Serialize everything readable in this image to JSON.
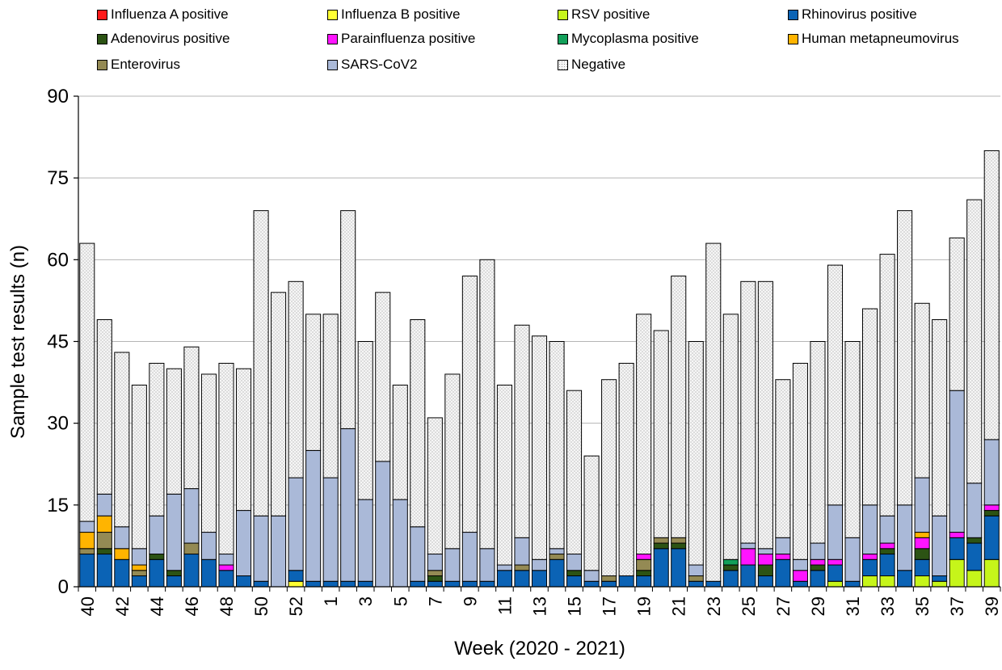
{
  "chart_data": {
    "type": "bar",
    "stacked": true,
    "title": "",
    "xlabel": "Week (2020 - 2021)",
    "ylabel": "Sample test results (n)",
    "ylim": [
      0,
      90
    ],
    "yticks": [
      0,
      15,
      30,
      45,
      60,
      75,
      90
    ],
    "grid": "horizontal",
    "legend_position": "top",
    "categories": [
      "40",
      "41",
      "42",
      "43",
      "44",
      "45",
      "46",
      "47",
      "48",
      "49",
      "50",
      "51",
      "52",
      "53",
      "1",
      "2",
      "3",
      "4",
      "5",
      "6",
      "7",
      "8",
      "9",
      "10",
      "11",
      "12",
      "13",
      "14",
      "15",
      "16",
      "17",
      "18",
      "19",
      "20",
      "21",
      "22",
      "23",
      "24",
      "25",
      "26",
      "27",
      "28",
      "29",
      "30",
      "31",
      "32",
      "33",
      "34",
      "35",
      "36",
      "37",
      "38",
      "39"
    ],
    "x_tick_labels": [
      "40",
      "",
      "42",
      "",
      "44",
      "",
      "46",
      "",
      "48",
      "",
      "50",
      "",
      "52",
      "",
      "1",
      "",
      "3",
      "",
      "5",
      "",
      "7",
      "",
      "9",
      "",
      "11",
      "",
      "13",
      "",
      "15",
      "",
      "17",
      "",
      "19",
      "",
      "21",
      "",
      "23",
      "",
      "25",
      "",
      "27",
      "",
      "29",
      "",
      "31",
      "",
      "33",
      "",
      "35",
      "",
      "37",
      "",
      "39"
    ],
    "series": [
      {
        "name": "RSV positive",
        "color": "#c6f51a",
        "pattern": "none",
        "values": [
          0,
          0,
          0,
          0,
          0,
          0,
          0,
          0,
          0,
          0,
          0,
          0,
          0,
          0,
          0,
          0,
          0,
          0,
          0,
          0,
          0,
          0,
          0,
          0,
          0,
          0,
          0,
          0,
          0,
          0,
          0,
          0,
          0,
          0,
          0,
          0,
          0,
          0,
          0,
          0,
          0,
          0,
          0,
          1,
          0,
          2,
          2,
          0,
          2,
          1,
          5,
          3,
          5
        ]
      },
      {
        "name": "Influenza B positive",
        "color": "#ffff33",
        "pattern": "none",
        "values": [
          0,
          0,
          0,
          0,
          0,
          0,
          0,
          0,
          0,
          0,
          0,
          0,
          1,
          0,
          0,
          0,
          0,
          0,
          0,
          0,
          0,
          0,
          0,
          0,
          0,
          0,
          0,
          0,
          0,
          0,
          0,
          0,
          0,
          0,
          0,
          0,
          0,
          0,
          0,
          0,
          0,
          0,
          0,
          0,
          0,
          0,
          0,
          0,
          0,
          0,
          0,
          0,
          0
        ]
      },
      {
        "name": "Rhinovirus positive",
        "color": "#0b63b5",
        "pattern": "none",
        "values": [
          6,
          6,
          5,
          2,
          5,
          2,
          6,
          5,
          3,
          2,
          1,
          0,
          2,
          1,
          1,
          1,
          1,
          0,
          0,
          1,
          1,
          1,
          1,
          1,
          3,
          3,
          3,
          5,
          2,
          1,
          1,
          2,
          2,
          7,
          7,
          1,
          1,
          3,
          4,
          2,
          5,
          1,
          3,
          3,
          1,
          3,
          4,
          3,
          3,
          1,
          4,
          5,
          8
        ]
      },
      {
        "name": "Adenovirus positive",
        "color": "#2c5314",
        "pattern": "none",
        "values": [
          0,
          1,
          0,
          0,
          1,
          1,
          0,
          0,
          0,
          0,
          0,
          0,
          0,
          0,
          0,
          0,
          0,
          0,
          0,
          0,
          1,
          0,
          0,
          0,
          0,
          0,
          0,
          0,
          1,
          0,
          0,
          0,
          1,
          1,
          1,
          0,
          0,
          1,
          0,
          2,
          0,
          0,
          1,
          0,
          0,
          0,
          1,
          0,
          2,
          0,
          0,
          1,
          1
        ]
      },
      {
        "name": "Enterovirus",
        "color": "#948a54",
        "pattern": "none",
        "values": [
          1,
          3,
          0,
          1,
          0,
          0,
          2,
          0,
          0,
          0,
          0,
          0,
          0,
          0,
          0,
          0,
          0,
          0,
          0,
          0,
          1,
          0,
          0,
          0,
          0,
          1,
          0,
          1,
          0,
          0,
          1,
          0,
          2,
          1,
          1,
          1,
          0,
          0,
          0,
          0,
          0,
          0,
          0,
          0,
          0,
          0,
          0,
          0,
          0,
          0,
          0,
          0,
          0
        ]
      },
      {
        "name": "Mycoplasma positive",
        "color": "#12a05a",
        "pattern": "none",
        "values": [
          0,
          0,
          0,
          0,
          0,
          0,
          0,
          0,
          0,
          0,
          0,
          0,
          0,
          0,
          0,
          0,
          0,
          0,
          0,
          0,
          0,
          0,
          0,
          0,
          0,
          0,
          0,
          0,
          0,
          0,
          0,
          0,
          0,
          0,
          0,
          0,
          0,
          1,
          0,
          0,
          0,
          0,
          0,
          0,
          0,
          0,
          0,
          0,
          0,
          0,
          0,
          0,
          0
        ]
      },
      {
        "name": "Parainfluenza positive",
        "color": "#ff14ff",
        "pattern": "none",
        "values": [
          0,
          0,
          0,
          0,
          0,
          0,
          0,
          0,
          1,
          0,
          0,
          0,
          0,
          0,
          0,
          0,
          0,
          0,
          0,
          0,
          0,
          0,
          0,
          0,
          0,
          0,
          0,
          0,
          0,
          0,
          0,
          0,
          1,
          0,
          0,
          0,
          0,
          0,
          3,
          2,
          1,
          2,
          1,
          1,
          0,
          1,
          1,
          0,
          2,
          0,
          1,
          0,
          1
        ]
      },
      {
        "name": "Human metapneumovirus",
        "color": "#ffb400",
        "pattern": "none",
        "values": [
          3,
          3,
          2,
          1,
          0,
          0,
          0,
          0,
          0,
          0,
          0,
          0,
          0,
          0,
          0,
          0,
          0,
          0,
          0,
          0,
          0,
          0,
          0,
          0,
          0,
          0,
          0,
          0,
          0,
          0,
          0,
          0,
          0,
          0,
          0,
          0,
          0,
          0,
          0,
          0,
          0,
          0,
          0,
          0,
          0,
          0,
          0,
          0,
          1,
          0,
          0,
          0,
          0
        ]
      },
      {
        "name": "Influenza A positive",
        "color": "#ff1a1a",
        "pattern": "none",
        "values": [
          0,
          0,
          0,
          0,
          0,
          0,
          0,
          0,
          0,
          0,
          0,
          0,
          0,
          0,
          0,
          0,
          0,
          0,
          0,
          0,
          0,
          0,
          0,
          0,
          0,
          0,
          0,
          0,
          0,
          0,
          0,
          0,
          0,
          0,
          0,
          0,
          0,
          0,
          0,
          0,
          0,
          0,
          0,
          0,
          0,
          0,
          0,
          0,
          0,
          0,
          0,
          0,
          0
        ]
      },
      {
        "name": "SARS-CoV2",
        "color": "#aab9d8",
        "pattern": "none",
        "values": [
          2,
          4,
          4,
          3,
          7,
          14,
          10,
          5,
          2,
          12,
          12,
          13,
          17,
          24,
          19,
          28,
          15,
          23,
          16,
          10,
          3,
          6,
          9,
          6,
          1,
          5,
          2,
          1,
          3,
          2,
          0,
          0,
          0,
          0,
          0,
          2,
          0,
          0,
          1,
          1,
          3,
          2,
          3,
          10,
          8,
          9,
          5,
          12,
          10,
          11,
          26,
          10,
          12
        ]
      },
      {
        "name": "Negative",
        "color": "#f3f3f3",
        "pattern": "dots",
        "values": [
          51,
          32,
          32,
          30,
          28,
          23,
          26,
          29,
          35,
          26,
          56,
          41,
          36,
          25,
          30,
          40,
          29,
          31,
          21,
          38,
          25,
          32,
          47,
          53,
          33,
          39,
          41,
          38,
          30,
          21,
          36,
          39,
          44,
          38,
          48,
          41,
          62,
          45,
          48,
          49,
          29,
          36,
          37,
          44,
          36,
          36,
          48,
          54,
          32,
          36,
          28,
          52,
          53
        ]
      }
    ]
  },
  "legend": {
    "items": [
      {
        "name": "Influenza A positive",
        "color": "#ff1a1a",
        "pattern": "none"
      },
      {
        "name": "Influenza B positive",
        "color": "#ffff33",
        "pattern": "none"
      },
      {
        "name": "RSV positive",
        "color": "#c6f51a",
        "pattern": "none"
      },
      {
        "name": "Rhinovirus positive",
        "color": "#0b63b5",
        "pattern": "none"
      },
      {
        "name": "Adenovirus positive",
        "color": "#2c5314",
        "pattern": "none"
      },
      {
        "name": "Parainfluenza positive",
        "color": "#ff14ff",
        "pattern": "none"
      },
      {
        "name": "Mycoplasma positive",
        "color": "#12a05a",
        "pattern": "none"
      },
      {
        "name": "Human metapneumovirus",
        "color": "#ffb400",
        "pattern": "none"
      },
      {
        "name": "Enterovirus",
        "color": "#948a54",
        "pattern": "none"
      },
      {
        "name": "SARS-CoV2",
        "color": "#aab9d8",
        "pattern": "none"
      },
      {
        "name": "Negative",
        "color": "#f3f3f3",
        "pattern": "dots"
      }
    ]
  }
}
